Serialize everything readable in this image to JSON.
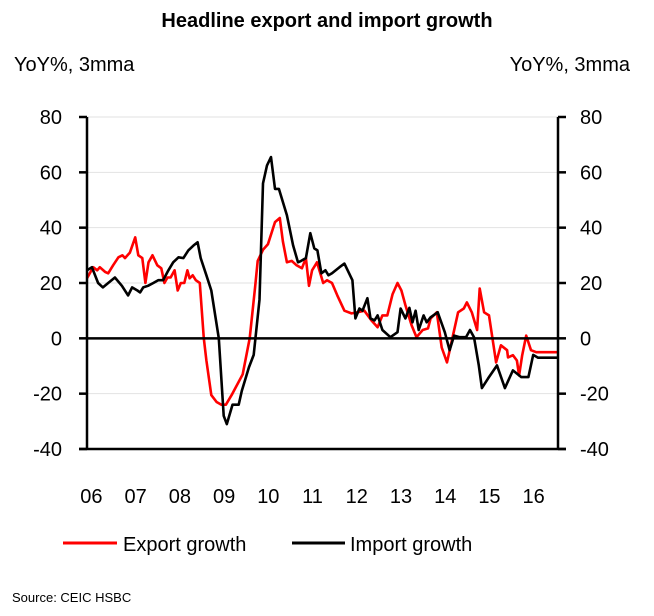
{
  "chart_data": {
    "type": "line",
    "title": "Headline export and import growth",
    "ylabel_left": "YoY%, 3mma",
    "ylabel_right": "YoY%, 3mma",
    "xlabel": "",
    "ylim": [
      -40,
      80
    ],
    "yticks": [
      80,
      60,
      40,
      20,
      0,
      -20,
      -40
    ],
    "yticks_labels": [
      "80",
      "60",
      "40",
      "20",
      "0",
      "-20",
      "-40"
    ],
    "xlim": [
      2006.0,
      2016.65
    ],
    "xticks": [
      2006,
      2007,
      2008,
      2009,
      2010,
      2011,
      2012,
      2013,
      2014,
      2015,
      2016
    ],
    "xtick_labels": [
      "06",
      "07",
      "08",
      "09",
      "10",
      "11",
      "12",
      "13",
      "14",
      "15",
      "16"
    ],
    "grid": true,
    "zero_line": true,
    "legend_position": "bottom",
    "series": [
      {
        "name": "Export growth",
        "color": "#ff0000",
        "x": [
          2006.0,
          2006.14,
          2006.23,
          2006.29,
          2006.41,
          2006.48,
          2006.59,
          2006.71,
          2006.8,
          2006.86,
          2006.97,
          2007.09,
          2007.16,
          2007.25,
          2007.32,
          2007.39,
          2007.48,
          2007.59,
          2007.68,
          2007.75,
          2007.82,
          2007.89,
          2007.98,
          2008.05,
          2008.12,
          2008.2,
          2008.27,
          2008.32,
          2008.39,
          2008.46,
          2008.55,
          2008.64,
          2008.7,
          2008.81,
          2008.93,
          2009.04,
          2009.14,
          2009.27,
          2009.52,
          2009.68,
          2009.8,
          2009.86,
          2009.98,
          2010.09,
          2010.25,
          2010.36,
          2010.43,
          2010.52,
          2010.63,
          2010.74,
          2010.86,
          2010.95,
          2011.02,
          2011.09,
          2011.2,
          2011.34,
          2011.43,
          2011.54,
          2011.66,
          2011.82,
          2011.98,
          2012.11,
          2012.27,
          2012.43,
          2012.57,
          2012.68,
          2012.79,
          2012.91,
          2013.02,
          2013.11,
          2013.2,
          2013.34,
          2013.45,
          2013.59,
          2013.71,
          2013.77,
          2013.91,
          2014.02,
          2014.14,
          2014.25,
          2014.39,
          2014.52,
          2014.59,
          2014.7,
          2014.82,
          2014.88,
          2014.98,
          2015.09,
          2015.25,
          2015.36,
          2015.5,
          2015.52,
          2015.63,
          2015.72,
          2015.77,
          2015.84,
          2015.93,
          2016.04,
          2016.16,
          2016.27,
          2016.39,
          2016.52,
          2016.61,
          2016.65
        ],
        "values": [
          21.7,
          25.7,
          24.6,
          25.7,
          24.0,
          23.5,
          26.4,
          29.3,
          30.0,
          29.0,
          31.0,
          36.5,
          30.0,
          29.0,
          20.0,
          27.5,
          30.0,
          26.4,
          25.3,
          20.0,
          22.0,
          22.0,
          24.6,
          17.3,
          20.0,
          20.0,
          24.6,
          21.7,
          22.8,
          21.0,
          20.0,
          0.0,
          -8.0,
          -20.5,
          -23.0,
          -24.0,
          -24.0,
          -20.5,
          -13.0,
          0.0,
          18.5,
          28.0,
          32.0,
          34.0,
          42.0,
          43.5,
          35.0,
          27.5,
          28.0,
          26.4,
          25.3,
          29.0,
          19.0,
          24.6,
          27.5,
          20.0,
          21.0,
          20.0,
          15.5,
          10.0,
          9.0,
          9.4,
          10.0,
          6.5,
          4.0,
          8.3,
          8.3,
          16.0,
          20.0,
          17.3,
          12.0,
          4.7,
          0.4,
          3.0,
          3.6,
          7.2,
          9.4,
          -3.3,
          -8.7,
          -0.7,
          9.4,
          10.8,
          13.0,
          9.4,
          3.0,
          18.0,
          9.4,
          8.3,
          -8.7,
          -2.5,
          -4.3,
          -6.9,
          -6.1,
          -8.0,
          -13.4,
          -6.1,
          1.0,
          -4.3,
          -5.0,
          -5.0,
          -5.0,
          -5.0,
          -5.0,
          -5.0
        ]
      },
      {
        "name": "Import growth",
        "color": "#000000",
        "x": [
          2006.0,
          2006.11,
          2006.25,
          2006.36,
          2006.48,
          2006.63,
          2006.79,
          2006.93,
          2007.02,
          2007.14,
          2007.2,
          2007.27,
          2007.38,
          2007.5,
          2007.61,
          2007.72,
          2007.84,
          2007.95,
          2008.07,
          2008.18,
          2008.29,
          2008.41,
          2008.5,
          2008.57,
          2008.7,
          2008.81,
          2008.98,
          2009.09,
          2009.16,
          2009.29,
          2009.43,
          2009.5,
          2009.66,
          2009.77,
          2009.9,
          2009.98,
          2010.07,
          2010.16,
          2010.25,
          2010.34,
          2010.52,
          2010.66,
          2010.77,
          2010.84,
          2010.95,
          2011.05,
          2011.14,
          2011.21,
          2011.3,
          2011.39,
          2011.46,
          2011.54,
          2011.71,
          2011.82,
          2012.0,
          2012.07,
          2012.16,
          2012.23,
          2012.34,
          2012.41,
          2012.5,
          2012.57,
          2012.68,
          2012.86,
          2013.02,
          2013.09,
          2013.2,
          2013.29,
          2013.36,
          2013.43,
          2013.5,
          2013.61,
          2013.68,
          2013.77,
          2013.93,
          2014.09,
          2014.2,
          2014.3,
          2014.43,
          2014.57,
          2014.66,
          2014.75,
          2014.86,
          2014.93,
          2015.07,
          2015.27,
          2015.45,
          2015.63,
          2015.82,
          2015.98,
          2016.09,
          2016.2,
          2016.31,
          2016.5,
          2016.65
        ],
        "values": [
          24.6,
          25.7,
          20.0,
          18.4,
          20.0,
          22.0,
          19.0,
          15.5,
          18.4,
          17.3,
          16.6,
          18.4,
          19.0,
          20.0,
          21.0,
          21.0,
          24.6,
          27.5,
          29.3,
          29.0,
          31.8,
          33.6,
          34.7,
          29.0,
          22.8,
          17.3,
          0.0,
          -28.0,
          -31.0,
          -24.0,
          -24.0,
          -19.0,
          -10.5,
          -6.0,
          14.0,
          56.0,
          62.5,
          65.5,
          54.0,
          54.0,
          44.5,
          33.6,
          27.5,
          28.0,
          29.0,
          38.0,
          32.5,
          31.8,
          23.5,
          24.6,
          22.8,
          23.5,
          25.7,
          27.0,
          21.0,
          7.2,
          10.8,
          10.0,
          14.5,
          7.2,
          6.5,
          8.3,
          3.0,
          0.4,
          2.2,
          10.8,
          7.2,
          11.0,
          5.8,
          10.0,
          3.0,
          8.3,
          5.8,
          7.6,
          9.4,
          2.2,
          -4.3,
          1.0,
          0.4,
          0.4,
          3.0,
          0.4,
          -9.8,
          -18.0,
          -14.5,
          -9.8,
          -18.0,
          -11.6,
          -14.0,
          -14.0,
          -6.0,
          -7.0,
          -7.0,
          -7.0,
          -7.0
        ]
      }
    ]
  },
  "source": "Source: CEIC HSBC"
}
